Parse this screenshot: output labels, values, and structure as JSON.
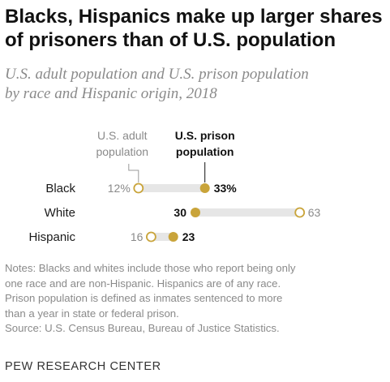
{
  "title_lines": [
    "Blacks, Hispanics make up larger shares",
    "of prisoners than of U.S. population"
  ],
  "subtitle_lines": [
    "U.S. adult population and U.S. prison population",
    "by race and Hispanic origin, 2018"
  ],
  "colors": {
    "prison": "#c9a43a",
    "population_fill": "#ffffff",
    "population_stroke": "#c9a43a",
    "bar": "#e6e6e6",
    "muted_text": "#8a8a8a"
  },
  "chart_data": {
    "type": "dot",
    "x_unit": "%",
    "legend": {
      "population_lines": [
        "U.S. adult",
        "population"
      ],
      "prison_lines": [
        "U.S. prison",
        "population"
      ]
    },
    "categories": [
      "Black",
      "White",
      "Hispanic"
    ],
    "series": [
      {
        "name": "U.S. adult population",
        "values": [
          12,
          63,
          16
        ],
        "labels": [
          "12%",
          "63",
          "16"
        ]
      },
      {
        "name": "U.S. prison population",
        "values": [
          33,
          30,
          23
        ],
        "labels": [
          "33%",
          "30",
          "23"
        ]
      }
    ]
  },
  "notes_lines": [
    "Notes: Blacks and whites include those who report being only",
    "one race and are non-Hispanic. Hispanics are of any race.",
    "Prison population is defined as inmates sentenced to more",
    "than a year in state or federal prison.",
    "Source: U.S. Census Bureau, Bureau of Justice Statistics."
  ],
  "footer": "PEW RESEARCH CENTER"
}
